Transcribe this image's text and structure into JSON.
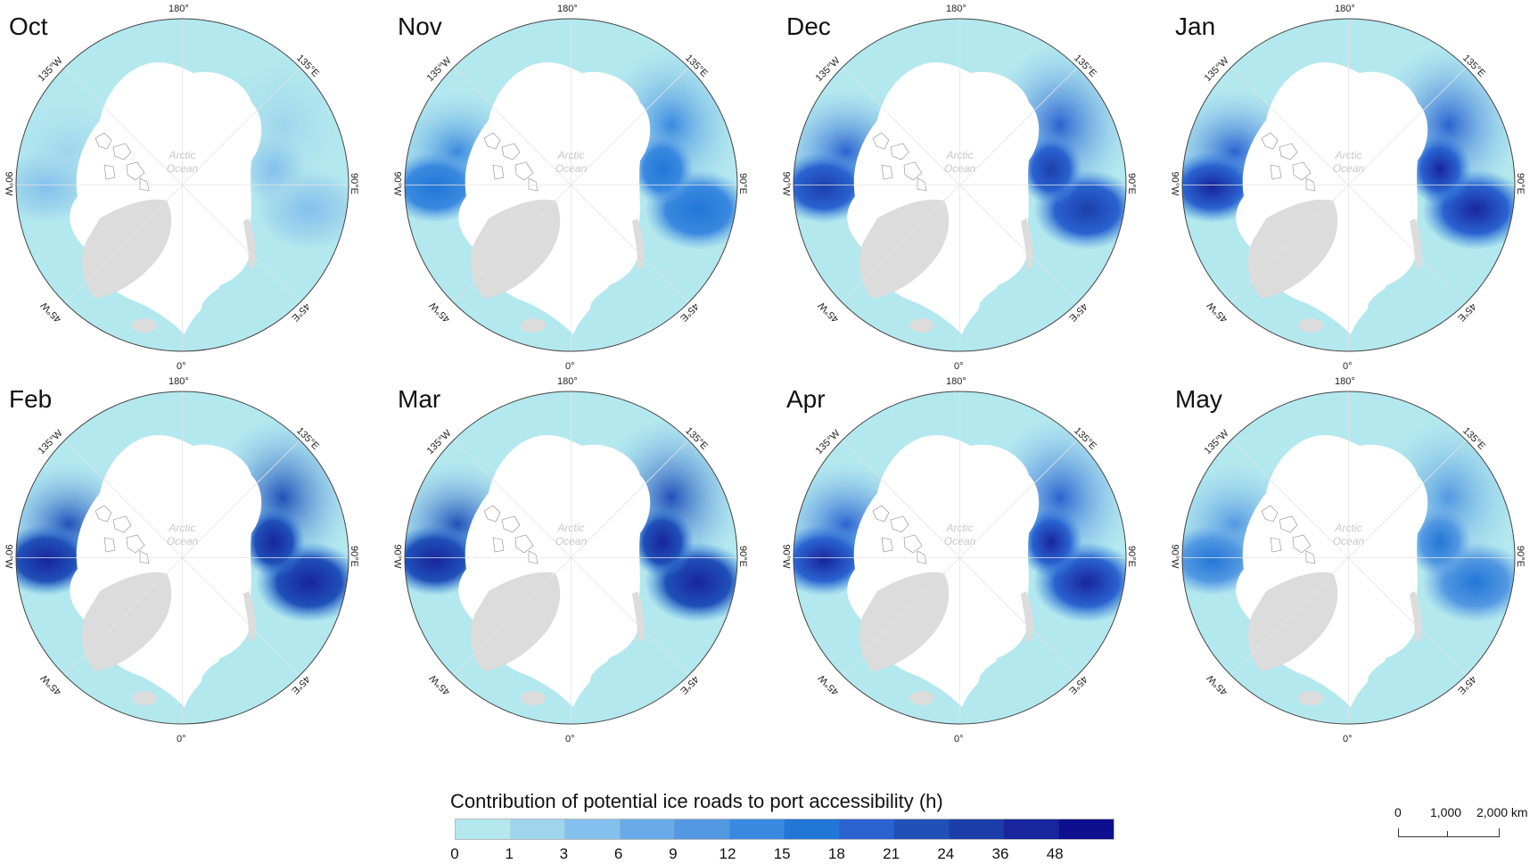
{
  "figure": {
    "legend_title": "Contribution of potential ice roads to port accessibility (h)",
    "colorbar": {
      "ticks": [
        "0",
        "1",
        "3",
        "6",
        "9",
        "12",
        "15",
        "18",
        "21",
        "24",
        "36",
        "48"
      ],
      "colors": [
        "#b3e8ee",
        "#9ed5ec",
        "#85bfee",
        "#6aaae8",
        "#5398e2",
        "#3a89e0",
        "#2277d6",
        "#2a63d0",
        "#2050b8",
        "#1c3eab",
        "#18259c",
        "#0e0f8e"
      ]
    },
    "scale_bar": {
      "labels": [
        "0",
        "1,000",
        "2,000 km"
      ]
    },
    "map_labels": {
      "ocean_line1": "Arctic",
      "ocean_line2": "Ocean",
      "lon_180": "180°",
      "lon_0": "0°",
      "lon_135w": "135°W",
      "lon_135e": "135°E",
      "lon_90w": "90°W",
      "lon_90e": "90°E",
      "lon_45w": "45°W",
      "lon_45e": "45°E"
    },
    "panels": [
      {
        "month": "Oct",
        "intensity": 0.15
      },
      {
        "month": "Nov",
        "intensity": 0.6
      },
      {
        "month": "Dec",
        "intensity": 0.85
      },
      {
        "month": "Jan",
        "intensity": 0.95
      },
      {
        "month": "Feb",
        "intensity": 1.0
      },
      {
        "month": "Mar",
        "intensity": 1.0
      },
      {
        "month": "Apr",
        "intensity": 0.95
      },
      {
        "month": "May",
        "intensity": 0.55
      }
    ]
  },
  "chart_data": {
    "type": "heatmap",
    "title": "Contribution of potential ice roads to port accessibility (h)",
    "panels": [
      "Oct",
      "Nov",
      "Dec",
      "Jan",
      "Feb",
      "Mar",
      "Apr",
      "May"
    ],
    "legend": {
      "bins": [
        "0",
        "1",
        "3",
        "6",
        "9",
        "12",
        "15",
        "18",
        "21",
        "24",
        "36",
        "48"
      ],
      "colors": [
        "#b3e8ee",
        "#9ed5ec",
        "#85bfee",
        "#6aaae8",
        "#5398e2",
        "#3a89e0",
        "#2277d6",
        "#2a63d0",
        "#2050b8",
        "#1c3eab",
        "#18259c",
        "#0e0f8e"
      ],
      "position": "bottom-center"
    },
    "projection": "North polar stereographic",
    "longitude_labels": [
      "180°",
      "135°E",
      "90°E",
      "45°E",
      "0°",
      "45°W",
      "90°W",
      "135°W"
    ],
    "scale_bar": [
      "0",
      "1,000",
      "2,000 km"
    ],
    "qualitative": {
      "Oct": "mostly lowest bin (0-1 h), small patches up to ~12 h near Yamal/Kara",
      "Nov": "widespread 3-24 h in Siberia and Canada, peaks 48+ h in Yamal and Hudson Bay",
      "Dec": "high values across Siberia and northern Canada",
      "Jan": "near-maximum coverage",
      "Feb": "maximum coverage, dark blue across Canada and Siberia",
      "Mar": "maximum coverage",
      "Apr": "high coverage, slightly receding",
      "May": "reduced; high values remain near Hudson Bay and Yamal/Gulf of Ob"
    }
  }
}
